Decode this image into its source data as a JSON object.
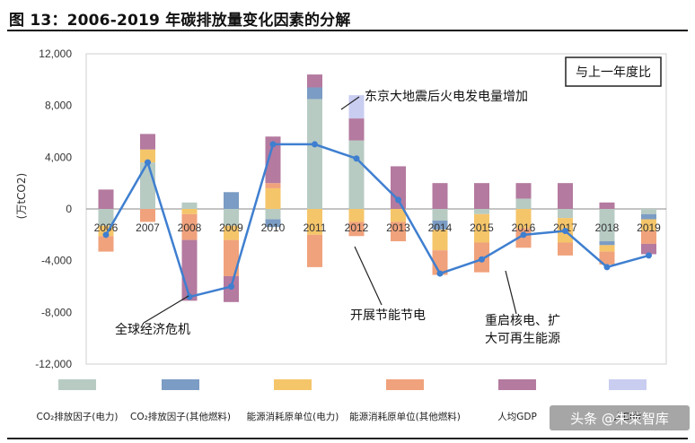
{
  "header": {
    "title": "图 13：2006-2019 年碳排放量变化因素的分解"
  },
  "watermark": "头条 @朱莱智库",
  "chart_data": {
    "type": "bar",
    "stacked": true,
    "ylabel": "(万tCO2)",
    "ylim": [
      -12000,
      12000
    ],
    "yticks": [
      12000,
      8000,
      4000,
      0,
      -4000,
      -8000,
      -12000
    ],
    "ytick_labels": [
      "12,000",
      "8,000",
      "4,000",
      "0",
      "-4,000",
      "-8,000",
      "-12,000"
    ],
    "categories": [
      "2006",
      "2007",
      "2008",
      "2009",
      "2010",
      "2011",
      "2012",
      "2013",
      "2014",
      "2015",
      "2016",
      "2017",
      "2018",
      "2019"
    ],
    "legend_position": "bottom",
    "badge": "与上一年度比",
    "series": [
      {
        "name": "CO₂排放因子(电力)",
        "color": "#b7cbc3",
        "values": [
          -1300,
          3600,
          500,
          -1300,
          -800,
          8500,
          5300,
          0,
          -900,
          -400,
          800,
          -700,
          -2500,
          -400
        ]
      },
      {
        "name": "CO₂排放因子(其他燃料)",
        "color": "#7b9cc4",
        "values": [
          0,
          0,
          0,
          1300,
          -600,
          900,
          0,
          0,
          -700,
          0,
          0,
          0,
          -300,
          -400
        ]
      },
      {
        "name": "能源消耗原单位(电力)",
        "color": "#f5c56a",
        "values": [
          -800,
          1000,
          -400,
          -1100,
          1600,
          -2000,
          -1000,
          -1000,
          -1600,
          -2200,
          -1500,
          -1900,
          -500,
          -900
        ]
      },
      {
        "name": "能源消耗原单位(其他燃料)",
        "color": "#f0a27c",
        "values": [
          -1200,
          -1000,
          -2000,
          -2800,
          400,
          -2500,
          -1100,
          -1500,
          -1900,
          -2300,
          -1500,
          -1000,
          -1000,
          -1000
        ]
      },
      {
        "name": "人均GDP",
        "color": "#b47a9f",
        "values": [
          1500,
          1200,
          -4700,
          -2000,
          3600,
          1000,
          1700,
          3300,
          2000,
          2000,
          1200,
          2000,
          500,
          -800
        ]
      },
      {
        "name": "人口数",
        "color": "#c9cdf0",
        "values": [
          0,
          0,
          0,
          0,
          0,
          0,
          1800,
          0,
          0,
          0,
          0,
          0,
          0,
          0
        ]
      }
    ],
    "net": {
      "name": "",
      "color": "#3f7fd0",
      "values": [
        -2000,
        3600,
        -6800,
        -6000,
        5000,
        5000,
        3900,
        700,
        -5000,
        -3900,
        -2000,
        -1700,
        -4500,
        -3600
      ]
    },
    "annotations": [
      {
        "text": "东京大地震后火电发电量增加",
        "x": "2011",
        "y": 8600
      },
      {
        "text": "全球经济危机",
        "x": "2008",
        "y": -9500
      },
      {
        "text": "开展节能节电",
        "x": "2012",
        "y": -8300
      },
      {
        "text": "重启核电、扩",
        "x": "2015",
        "y": -8800
      },
      {
        "text": "大可再生能源",
        "x": "2015",
        "y": -10300
      }
    ]
  }
}
